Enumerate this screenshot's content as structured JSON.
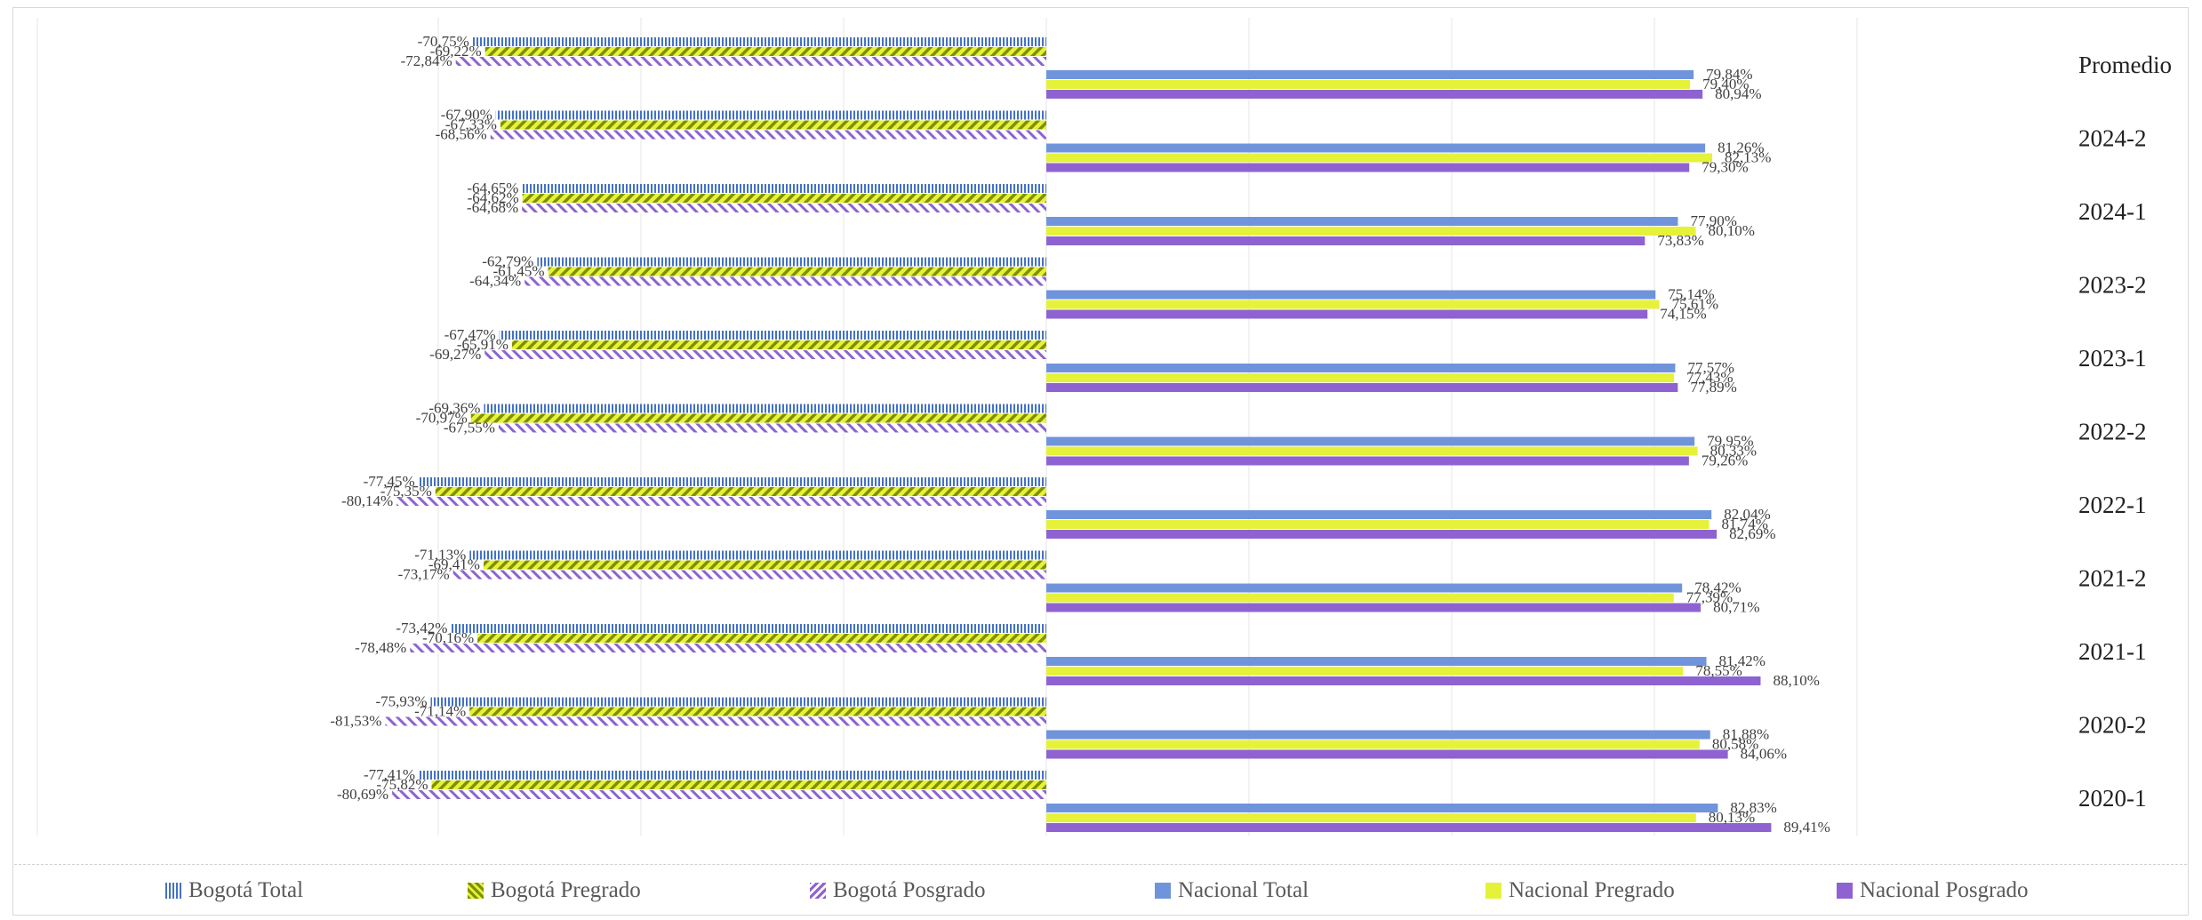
{
  "chart_data": {
    "type": "bar",
    "orientation": "horizontal",
    "categories": [
      "Promedio",
      "2024-2",
      "2024-1",
      "2023-2",
      "2023-1",
      "2022-2",
      "2022-1",
      "2021-2",
      "2021-1",
      "2020-2",
      "2020-1"
    ],
    "category_label_position": "right",
    "series": [
      {
        "name": "Bogotá Total",
        "color": "#4472C4",
        "pattern": "vertical-lines",
        "side": "left",
        "values": [
          -70.75,
          -67.9,
          -64.65,
          -62.79,
          -67.47,
          -69.36,
          -77.45,
          -71.13,
          -73.42,
          -75.93,
          -77.41
        ],
        "labels": [
          "-70,75%",
          "-67,90%",
          "-64,65%",
          "-62,79%",
          "-67,47%",
          "-69,36%",
          "-77,45%",
          "-71,13%",
          "-73,42%",
          "-75,93%",
          "-77,41%"
        ]
      },
      {
        "name": "Bogotá Pregrado",
        "color": "#8A9A00",
        "pattern": "diagonal-dark",
        "side": "left",
        "values": [
          -69.22,
          -67.33,
          -64.62,
          -61.45,
          -65.91,
          -70.97,
          -75.35,
          -69.41,
          -70.16,
          -71.14,
          -75.82
        ],
        "labels": [
          "-69,22%",
          "-67,33%",
          "-64,62%",
          "-61,45%",
          "-65,91%",
          "-70,97%",
          "-75,35%",
          "-69,41%",
          "-70,16%",
          "-71,14%",
          "-75,82%"
        ]
      },
      {
        "name": "Bogotá Posgrado",
        "color": "#7B5CD6",
        "pattern": "diagonal-light",
        "side": "left",
        "values": [
          -72.84,
          -68.56,
          -64.68,
          -64.34,
          -69.27,
          -67.55,
          -80.14,
          -73.17,
          -78.48,
          -81.53,
          -80.69
        ],
        "labels": [
          "-72,84%",
          "-68,56%",
          "-64,68%",
          "-64,34%",
          "-69,27%",
          "-67,55%",
          "-80,14%",
          "-73,17%",
          "-78,48%",
          "-81,53%",
          "-80,69%"
        ]
      },
      {
        "name": "Nacional Total",
        "color": "#6F94DC",
        "pattern": "solid",
        "side": "right",
        "values": [
          79.84,
          81.26,
          77.9,
          75.14,
          77.57,
          79.95,
          82.04,
          78.42,
          81.42,
          81.88,
          82.83
        ],
        "labels": [
          "79,84%",
          "81,26%",
          "77,90%",
          "75,14%",
          "77,57%",
          "79,95%",
          "82,04%",
          "78,42%",
          "81,42%",
          "81,88%",
          "82,83%"
        ]
      },
      {
        "name": "Nacional Pregrado",
        "color": "#E6F23A",
        "pattern": "solid",
        "side": "right",
        "values": [
          79.4,
          82.13,
          80.1,
          75.61,
          77.43,
          80.33,
          81.74,
          77.39,
          78.55,
          80.58,
          80.13
        ],
        "labels": [
          "79,40%",
          "82,13%",
          "80,10%",
          "75,61%",
          "77,43%",
          "80,33%",
          "81,74%",
          "77,39%",
          "78,55%",
          "80,58%",
          "80,13%"
        ]
      },
      {
        "name": "Nacional Posgrado",
        "color": "#8E63D1",
        "pattern": "solid",
        "side": "right",
        "values": [
          80.94,
          79.3,
          73.83,
          74.15,
          77.89,
          79.26,
          82.69,
          80.71,
          88.1,
          84.06,
          89.41
        ],
        "labels": [
          "80,94%",
          "79,30%",
          "73,83%",
          "74,15%",
          "77,89%",
          "79,26%",
          "82,69%",
          "80,71%",
          "88,10%",
          "84,06%",
          "89,41%"
        ]
      }
    ],
    "xlim": [
      -100,
      100
    ],
    "grid": true,
    "legend": "bottom"
  }
}
